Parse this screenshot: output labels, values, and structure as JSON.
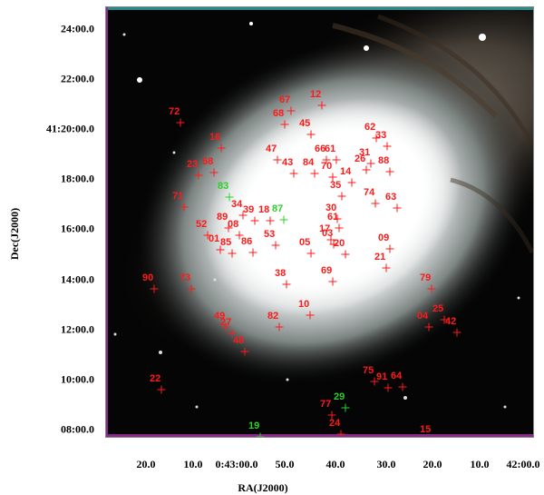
{
  "axes": {
    "xlabel": "RA(J2000)",
    "ylabel": "Dec(J2000)",
    "yticks": [
      "24:00.0",
      "22:00.0",
      "41:20:00.0",
      "18:00.0",
      "16:00.0",
      "14:00.0",
      "12:00.0",
      "10:00.0",
      "08:00.0"
    ],
    "xticks": [
      "20.0",
      "10.0",
      "0:43:00.0",
      "50.0",
      "40.0",
      "30.0",
      "20.0",
      "10.0",
      "42:00.0"
    ]
  },
  "colors": {
    "marker": "#ff1a1a",
    "marker_alt": "#2ad12a",
    "background": "#000000",
    "bulge": "#ffffff"
  },
  "sources": [
    {
      "id": "67",
      "color": "red"
    },
    {
      "id": "12",
      "color": "red"
    },
    {
      "id": "72",
      "color": "red"
    },
    {
      "id": "68",
      "color": "red"
    },
    {
      "id": "45",
      "color": "red"
    },
    {
      "id": "62",
      "color": "red"
    },
    {
      "id": "33",
      "color": "red"
    },
    {
      "id": "16",
      "color": "red"
    },
    {
      "id": "47",
      "color": "red"
    },
    {
      "id": "66",
      "color": "red"
    },
    {
      "id": "61",
      "color": "red"
    },
    {
      "id": "31",
      "color": "red"
    },
    {
      "id": "26",
      "color": "red"
    },
    {
      "id": "88",
      "color": "red"
    },
    {
      "id": "23",
      "color": "red"
    },
    {
      "id": "58",
      "color": "red"
    },
    {
      "id": "43",
      "color": "red"
    },
    {
      "id": "84",
      "color": "red"
    },
    {
      "id": "70",
      "color": "red"
    },
    {
      "id": "14",
      "color": "red"
    },
    {
      "id": "83",
      "color": "green"
    },
    {
      "id": "35",
      "color": "red"
    },
    {
      "id": "74",
      "color": "red"
    },
    {
      "id": "63",
      "color": "red"
    },
    {
      "id": "71",
      "color": "red"
    },
    {
      "id": "34",
      "color": "red"
    },
    {
      "id": "39",
      "color": "red"
    },
    {
      "id": "18",
      "color": "red"
    },
    {
      "id": "87",
      "color": "green"
    },
    {
      "id": "30",
      "color": "red"
    },
    {
      "id": "61",
      "color": "red"
    },
    {
      "id": "89",
      "color": "red"
    },
    {
      "id": "08",
      "color": "red"
    },
    {
      "id": "52",
      "color": "red"
    },
    {
      "id": "01",
      "color": "red"
    },
    {
      "id": "85",
      "color": "red"
    },
    {
      "id": "86",
      "color": "red"
    },
    {
      "id": "53",
      "color": "red"
    },
    {
      "id": "17",
      "color": "red"
    },
    {
      "id": "03",
      "color": "red"
    },
    {
      "id": "09",
      "color": "red"
    },
    {
      "id": "05",
      "color": "red"
    },
    {
      "id": "20",
      "color": "red"
    },
    {
      "id": "21",
      "color": "red"
    },
    {
      "id": "69",
      "color": "red"
    },
    {
      "id": "38",
      "color": "red"
    },
    {
      "id": "90",
      "color": "red"
    },
    {
      "id": "73",
      "color": "red"
    },
    {
      "id": "79",
      "color": "red"
    },
    {
      "id": "10",
      "color": "red"
    },
    {
      "id": "25",
      "color": "red"
    },
    {
      "id": "04",
      "color": "red"
    },
    {
      "id": "42",
      "color": "red"
    },
    {
      "id": "49",
      "color": "red"
    },
    {
      "id": "27",
      "color": "red"
    },
    {
      "id": "82",
      "color": "red"
    },
    {
      "id": "48",
      "color": "red"
    },
    {
      "id": "75",
      "color": "red"
    },
    {
      "id": "91",
      "color": "red"
    },
    {
      "id": "64",
      "color": "red"
    },
    {
      "id": "22",
      "color": "red"
    },
    {
      "id": "29",
      "color": "green"
    },
    {
      "id": "77",
      "color": "red"
    },
    {
      "id": "19",
      "color": "green"
    },
    {
      "id": "24",
      "color": "red"
    },
    {
      "id": "15",
      "color": "red"
    }
  ]
}
